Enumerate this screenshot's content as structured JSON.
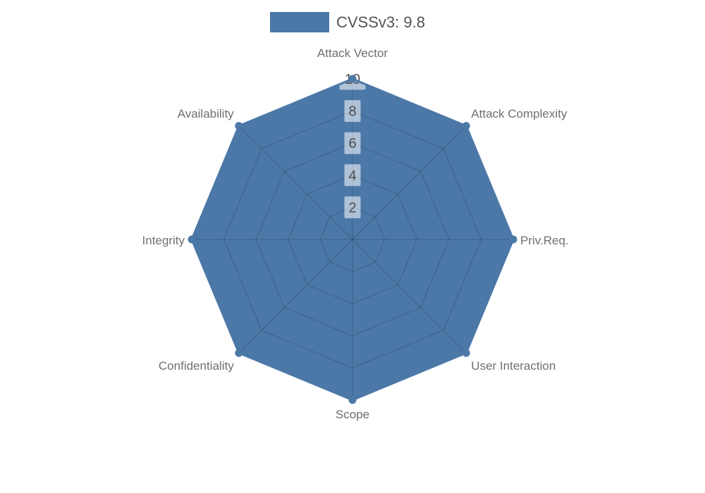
{
  "legend": {
    "label": "CVSSv3: 9.8",
    "swatch_color": "#4c78a8",
    "text_color": "#545454"
  },
  "chart_data": {
    "type": "radar",
    "title": "CVSSv3: 9.8",
    "categories": [
      "Attack Vector",
      "Attack Complexity",
      "Priv.Req.",
      "User Interaction",
      "Scope",
      "Confidentiality",
      "Integrity",
      "Availability"
    ],
    "series": [
      {
        "name": "CVSSv3: 9.8",
        "values": [
          10,
          10,
          10,
          10,
          10,
          10,
          10,
          10
        ],
        "color": "#4c78a8"
      }
    ],
    "radial_ticks": [
      2,
      4,
      6,
      8,
      10
    ],
    "r_min": 0,
    "r_max": 10,
    "grid": true,
    "legend_position": "top-center",
    "colors": {
      "background": "#ffffff",
      "fill": "#4c78a8",
      "grid_line": "rgba(0,0,0,0.2)",
      "axis_label": "#6f6f6f",
      "tick_text": "#4e4e4e",
      "tick_box": "rgba(255,255,255,0.55)"
    }
  }
}
